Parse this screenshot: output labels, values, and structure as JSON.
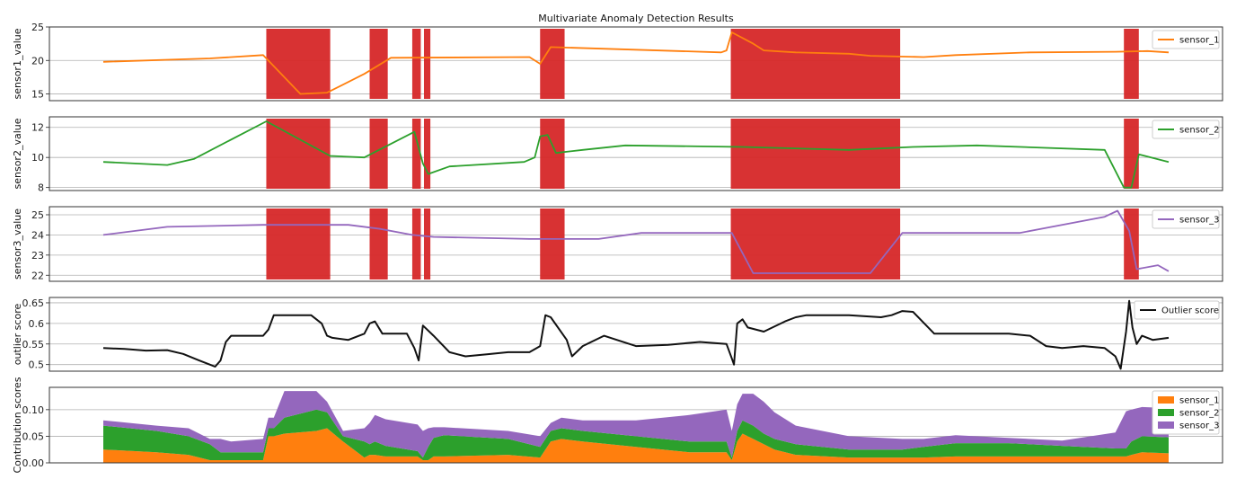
{
  "chart_data": {
    "title": "Multivariate Anomaly Detection Results",
    "anomaly_color": "#d62728",
    "x_range": [
      0,
      1000
    ],
    "anomaly_regions": [
      [
        153,
        213
      ],
      [
        250,
        267
      ],
      [
        290,
        298
      ],
      [
        301,
        307
      ],
      [
        410,
        433
      ],
      [
        589,
        748
      ],
      [
        958,
        972
      ]
    ],
    "panels": [
      {
        "type": "line",
        "ylabel": "sensor1_value",
        "ylim": [
          14,
          25
        ],
        "yticks": [
          15,
          20,
          25
        ],
        "legend_loc": "top-right",
        "show_anomalies": true,
        "series": [
          {
            "name": "sensor_1",
            "color": "#ff7f0e",
            "x": [
              0,
              100,
              150,
              185,
              210,
              245,
              270,
              400,
              410,
              420,
              580,
              585,
              590,
              610,
              620,
              650,
              700,
              720,
              770,
              800,
              870,
              950,
              980,
              1000
            ],
            "y": [
              19.8,
              20.3,
              20.8,
              15,
              15.2,
              18,
              20.4,
              20.5,
              19.5,
              22,
              21.2,
              21.5,
              24.2,
              22.5,
              21.5,
              21.2,
              21.0,
              20.7,
              20.5,
              20.8,
              21.2,
              21.3,
              21.4,
              21.2
            ]
          }
        ]
      },
      {
        "type": "line",
        "ylabel": "sensor2_value",
        "ylim": [
          7.8,
          12.7
        ],
        "yticks": [
          8,
          10,
          12
        ],
        "legend_loc": "top-right",
        "show_anomalies": true,
        "series": [
          {
            "name": "sensor_2",
            "color": "#2ca02c",
            "x": [
              0,
              60,
              85,
              153,
              213,
              245,
              292,
              300,
              305,
              325,
              395,
              405,
              410,
              417,
              425,
              450,
              490,
              600,
              700,
              760,
              820,
              940,
              958,
              965,
              972,
              1000
            ],
            "y": [
              9.7,
              9.5,
              9.9,
              12.4,
              10.1,
              10.0,
              11.7,
              9.6,
              8.9,
              9.4,
              9.7,
              10.0,
              11.4,
              11.5,
              10.3,
              10.5,
              10.8,
              10.7,
              10.5,
              10.7,
              10.8,
              10.5,
              8.0,
              8.0,
              10.2,
              9.7
            ]
          }
        ]
      },
      {
        "type": "line",
        "ylabel": "sensor3_value",
        "ylim": [
          21.7,
          25.4
        ],
        "yticks": [
          22,
          23,
          24,
          25
        ],
        "legend_loc": "top-right",
        "show_anomalies": true,
        "series": [
          {
            "name": "sensor_3",
            "color": "#9467bd",
            "x": [
              0,
              60,
              150,
              230,
              260,
              290,
              310,
              400,
              465,
              505,
              590,
              610,
              720,
              750,
              860,
              940,
              952,
              963,
              970,
              990,
              1000
            ],
            "y": [
              24.0,
              24.4,
              24.5,
              24.5,
              24.3,
              24.0,
              23.9,
              23.8,
              23.8,
              24.1,
              24.1,
              22.1,
              22.1,
              24.1,
              24.1,
              24.9,
              25.2,
              24.2,
              22.3,
              22.5,
              22.2
            ]
          }
        ]
      },
      {
        "type": "line",
        "ylabel": "outlier score",
        "ylim": [
          0.484,
          0.663
        ],
        "yticks": [
          0.5,
          0.55,
          0.6,
          0.65
        ],
        "legend_loc": "top-right",
        "show_anomalies": false,
        "series": [
          {
            "name": "Outlier score",
            "color": "#111111",
            "x": [
              0,
              20,
              40,
              60,
              75,
              90,
              100,
              105,
              110,
              115,
              120,
              140,
              150,
              155,
              160,
              175,
              195,
              205,
              210,
              215,
              230,
              245,
              250,
              255,
              262,
              270,
              285,
              292,
              296,
              300,
              310,
              325,
              340,
              360,
              380,
              400,
              410,
              415,
              420,
              435,
              440,
              450,
              470,
              500,
              530,
              560,
              585,
              590,
              592,
              595,
              600,
              605,
              620,
              640,
              650,
              660,
              700,
              730,
              740,
              750,
              760,
              780,
              800,
              850,
              870,
              885,
              900,
              920,
              940,
              950,
              955,
              960,
              963,
              966,
              970,
              975,
              985,
              1000
            ],
            "y": [
              0.54,
              0.538,
              0.534,
              0.535,
              0.526,
              0.51,
              0.5,
              0.495,
              0.51,
              0.555,
              0.57,
              0.57,
              0.57,
              0.585,
              0.62,
              0.62,
              0.62,
              0.6,
              0.57,
              0.565,
              0.56,
              0.575,
              0.6,
              0.605,
              0.575,
              0.575,
              0.575,
              0.54,
              0.51,
              0.595,
              0.57,
              0.53,
              0.52,
              0.525,
              0.53,
              0.53,
              0.545,
              0.62,
              0.615,
              0.56,
              0.52,
              0.545,
              0.57,
              0.545,
              0.548,
              0.555,
              0.55,
              0.515,
              0.5,
              0.6,
              0.61,
              0.59,
              0.58,
              0.605,
              0.615,
              0.62,
              0.62,
              0.615,
              0.62,
              0.63,
              0.628,
              0.575,
              0.575,
              0.575,
              0.57,
              0.545,
              0.54,
              0.545,
              0.54,
              0.52,
              0.49,
              0.58,
              0.655,
              0.59,
              0.55,
              0.57,
              0.56,
              0.565
            ]
          }
        ]
      },
      {
        "type": "area",
        "stacked": true,
        "ylabel": "Contribution scores",
        "ylim": [
          0,
          0.142
        ],
        "yticks": [
          0.0,
          0.05,
          0.1
        ],
        "ytick_labels": [
          "0.00",
          "0.05",
          "0.10"
        ],
        "legend_loc": "top-right",
        "show_anomalies": false,
        "x": [
          0,
          50,
          80,
          100,
          110,
          120,
          150,
          155,
          160,
          170,
          200,
          210,
          225,
          245,
          250,
          255,
          265,
          295,
          300,
          305,
          310,
          320,
          380,
          410,
          420,
          430,
          450,
          500,
          550,
          585,
          590,
          595,
          600,
          610,
          620,
          630,
          650,
          700,
          750,
          770,
          800,
          850,
          900,
          950,
          960,
          965,
          975,
          1000
        ],
        "series": [
          {
            "name": "sensor_1",
            "color": "#ff7f0e",
            "values": [
              0.025,
              0.02,
              0.015,
              0.005,
              0.005,
              0.005,
              0.005,
              0.05,
              0.05,
              0.055,
              0.06,
              0.065,
              0.04,
              0.01,
              0.015,
              0.015,
              0.012,
              0.012,
              0.005,
              0.005,
              0.012,
              0.012,
              0.015,
              0.01,
              0.04,
              0.045,
              0.04,
              0.03,
              0.02,
              0.02,
              0.005,
              0.04,
              0.055,
              0.045,
              0.035,
              0.025,
              0.015,
              0.01,
              0.01,
              0.01,
              0.012,
              0.012,
              0.012,
              0.012,
              0.012,
              0.015,
              0.02,
              0.018
            ]
          },
          {
            "name": "sensor_2",
            "color": "#2ca02c",
            "values": [
              0.045,
              0.04,
              0.035,
              0.03,
              0.015,
              0.015,
              0.015,
              0.015,
              0.015,
              0.03,
              0.04,
              0.03,
              0.01,
              0.03,
              0.02,
              0.025,
              0.02,
              0.01,
              0.005,
              0.025,
              0.035,
              0.04,
              0.03,
              0.02,
              0.02,
              0.02,
              0.02,
              0.02,
              0.02,
              0.02,
              0.005,
              0.02,
              0.025,
              0.025,
              0.02,
              0.02,
              0.02,
              0.015,
              0.015,
              0.02,
              0.025,
              0.025,
              0.02,
              0.015,
              0.015,
              0.025,
              0.03,
              0.03
            ]
          },
          {
            "name": "sensor_3",
            "color": "#9467bd",
            "values": [
              0.01,
              0.01,
              0.015,
              0.01,
              0.025,
              0.02,
              0.025,
              0.02,
              0.02,
              0.05,
              0.035,
              0.02,
              0.01,
              0.025,
              0.04,
              0.05,
              0.05,
              0.05,
              0.05,
              0.035,
              0.02,
              0.015,
              0.015,
              0.02,
              0.015,
              0.02,
              0.02,
              0.03,
              0.05,
              0.06,
              0.05,
              0.05,
              0.05,
              0.06,
              0.06,
              0.05,
              0.035,
              0.025,
              0.02,
              0.015,
              0.015,
              0.01,
              0.01,
              0.03,
              0.07,
              0.06,
              0.055,
              0.055
            ]
          }
        ]
      }
    ]
  }
}
